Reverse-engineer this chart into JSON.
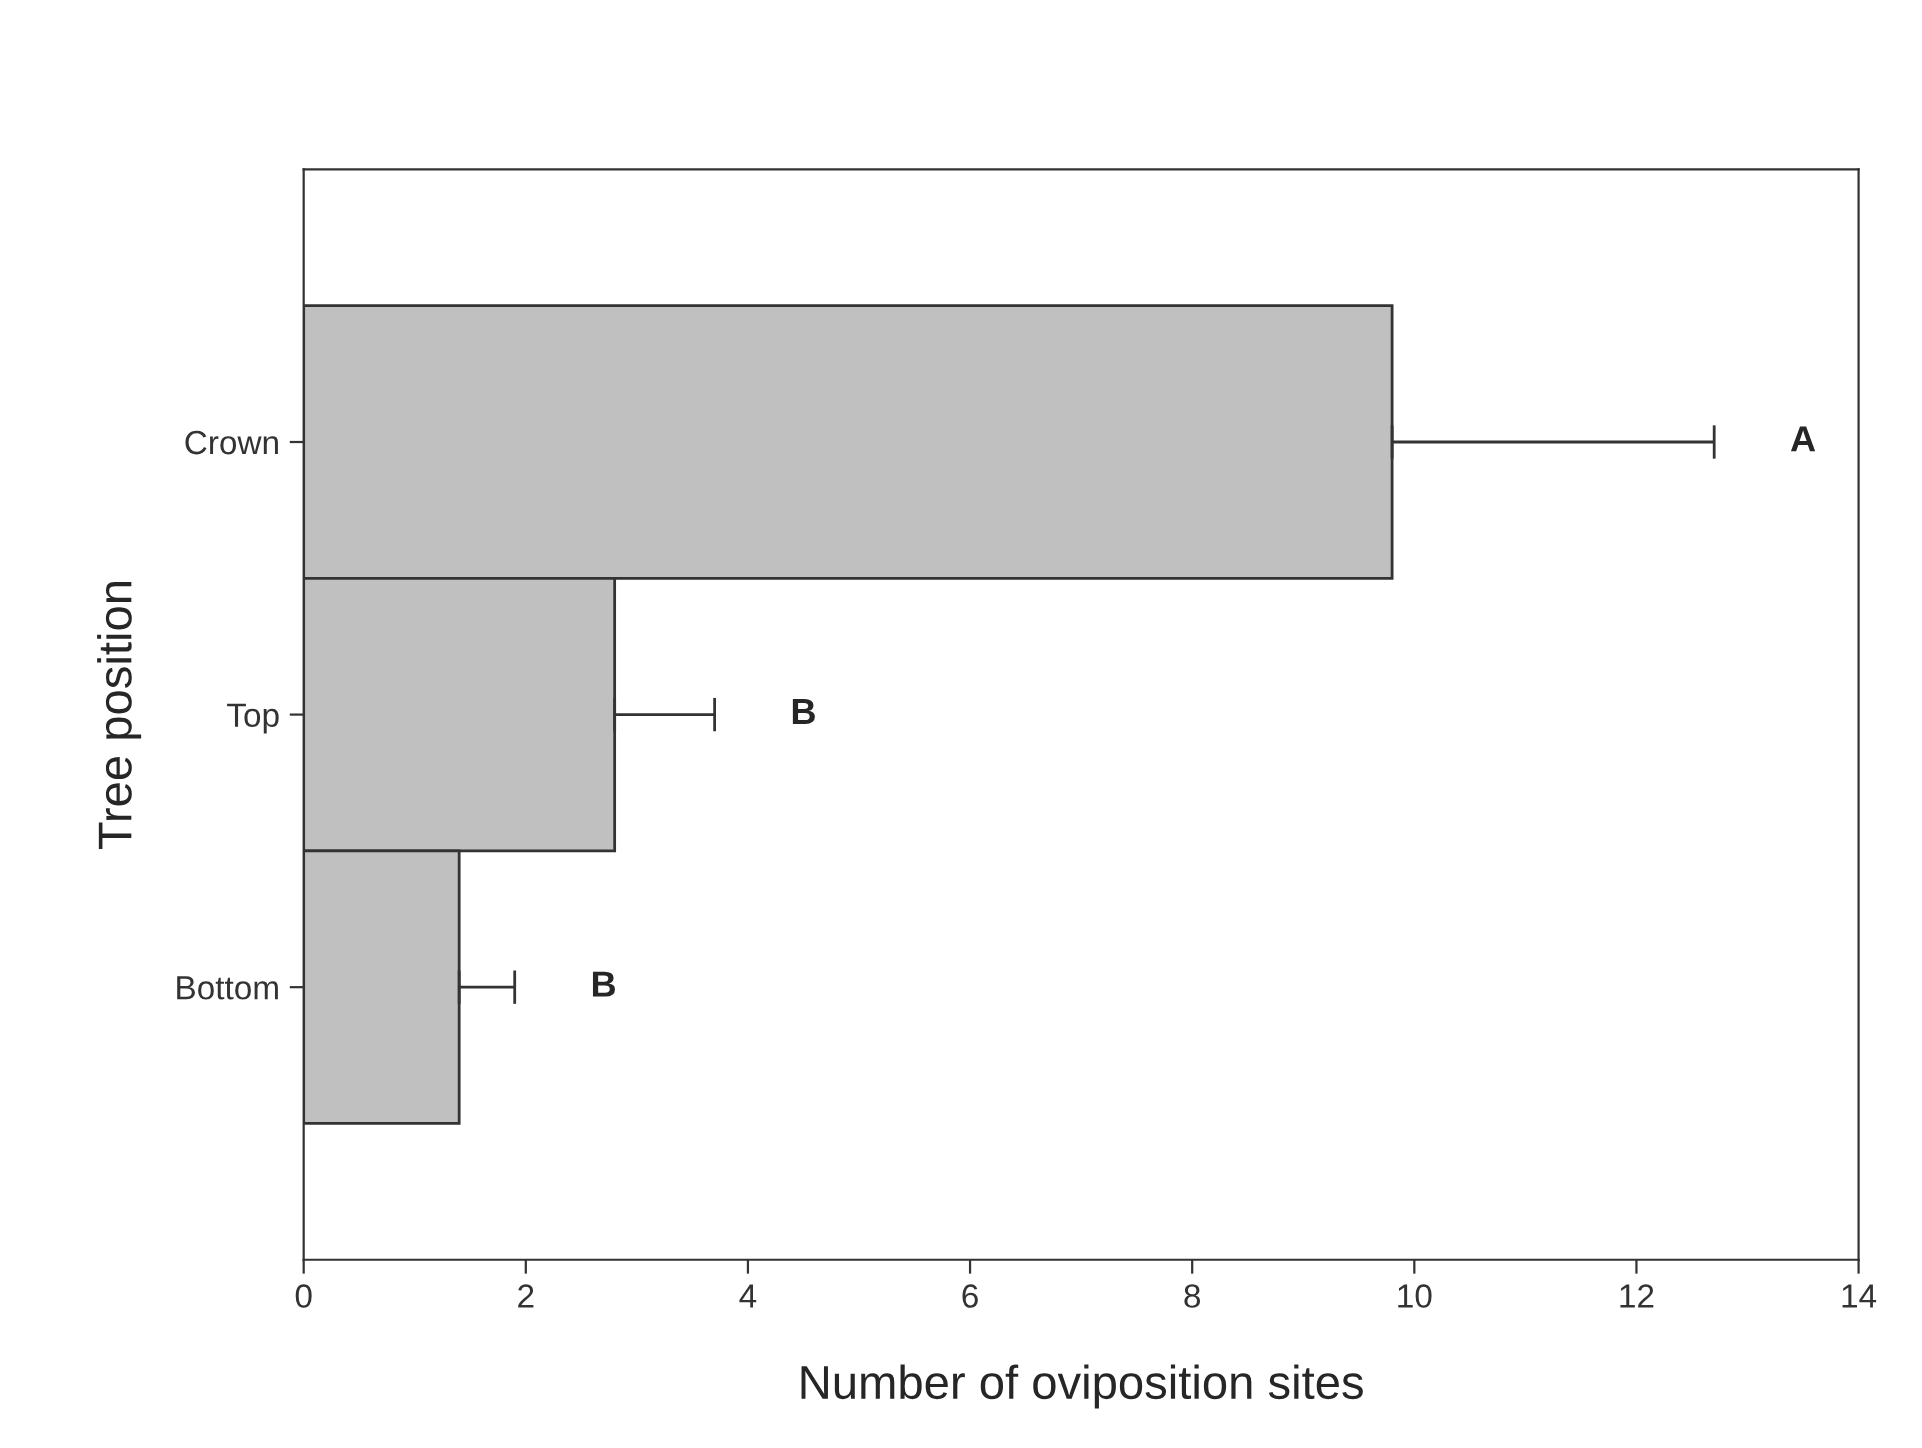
{
  "chart_data": {
    "type": "bar",
    "orientation": "horizontal",
    "xlabel": "Number of oviposition sites",
    "ylabel": "Tree position",
    "categories": [
      "Crown",
      "Top",
      "Bottom"
    ],
    "values": [
      9.8,
      2.8,
      1.4
    ],
    "errors": [
      [
        9.8,
        12.7
      ],
      [
        2.8,
        3.7
      ],
      [
        1.4,
        1.9
      ]
    ],
    "color": "#c0c0c0",
    "xlim": [
      0,
      14
    ],
    "xticks": [
      0,
      2,
      4,
      6,
      8,
      10,
      12,
      14
    ],
    "grid": false,
    "legend": false,
    "annotations": [
      "A",
      "B",
      "B"
    ]
  }
}
